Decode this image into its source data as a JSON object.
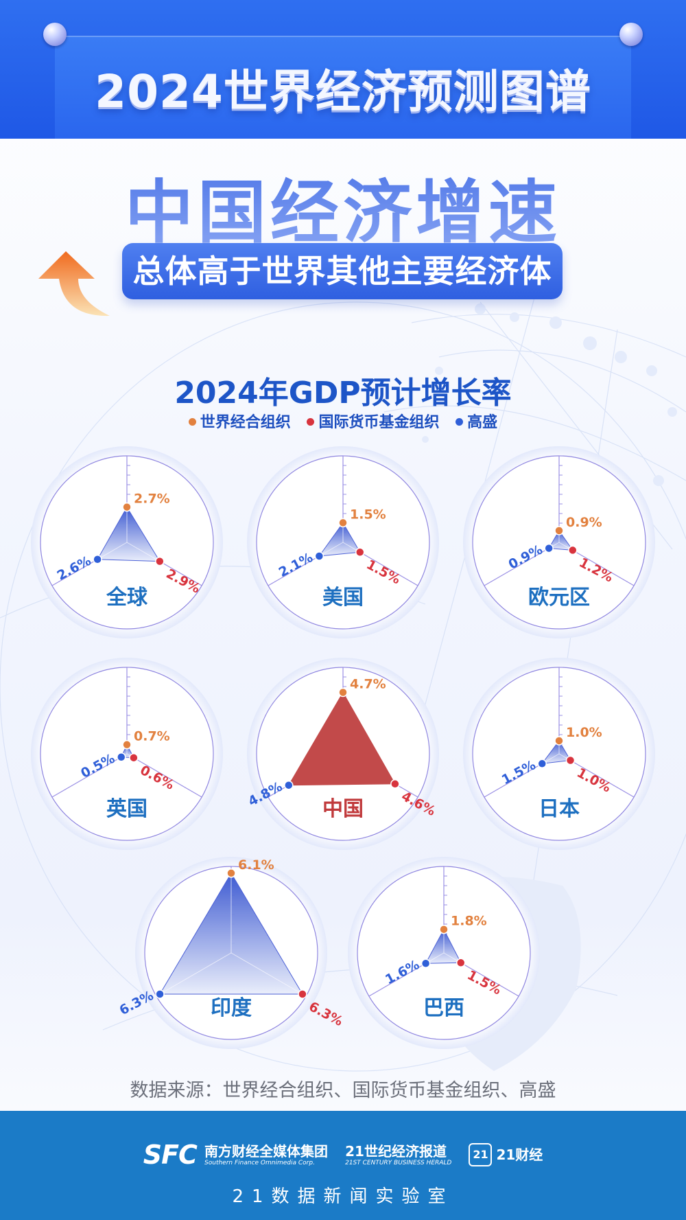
{
  "header": {
    "title": "2024世界经济预测图谱"
  },
  "hero": {
    "title": "中国经济增速",
    "subtitle": "总体高于世界其他主要经济体"
  },
  "colors": {
    "oecd": "#e2813f",
    "imf": "#d8343e",
    "gs": "#2f5fd8",
    "china_fill": "#c24a4a",
    "footer": "#1b7bc7"
  },
  "chart_data": {
    "type": "radar",
    "title": "2024年GDP预计增长率",
    "legend": [
      {
        "name": "世界经合组织",
        "color": "#e2813f"
      },
      {
        "name": "国际货币基金组织",
        "color": "#d8343e"
      },
      {
        "name": "高盛",
        "color": "#2f5fd8"
      }
    ],
    "axes": [
      "世界经合组织",
      "国际货币基金组织",
      "高盛"
    ],
    "unit": "%",
    "rmax": 6.3,
    "regions": [
      {
        "name": "全球",
        "values": [
          2.7,
          2.9,
          2.6
        ],
        "labels": [
          "2.7%",
          "2.9%",
          "2.6%"
        ]
      },
      {
        "name": "美国",
        "values": [
          1.5,
          1.5,
          2.1
        ],
        "labels": [
          "1.5%",
          "1.5%",
          "2.1%"
        ]
      },
      {
        "name": "欧元区",
        "values": [
          0.9,
          1.2,
          0.9
        ],
        "labels": [
          "0.9%",
          "1.2%",
          "0.9%"
        ]
      },
      {
        "name": "英国",
        "values": [
          0.7,
          0.6,
          0.5
        ],
        "labels": [
          "0.7%",
          "0.6%",
          "0.5%"
        ]
      },
      {
        "name": "中国",
        "values": [
          4.7,
          4.6,
          4.8
        ],
        "labels": [
          "4.7%",
          "4.6%",
          "4.8%"
        ],
        "highlight": true
      },
      {
        "name": "日本",
        "values": [
          1.0,
          1.0,
          1.5
        ],
        "labels": [
          "1.0%",
          "1.0%",
          "1.5%"
        ]
      },
      {
        "name": "印度",
        "values": [
          6.1,
          6.3,
          6.3
        ],
        "labels": [
          "6.1%",
          "6.3%",
          "6.3%"
        ]
      },
      {
        "name": "巴西",
        "values": [
          1.8,
          1.5,
          1.6
        ],
        "labels": [
          "1.8%",
          "1.5%",
          "1.6%"
        ]
      }
    ]
  },
  "source": "数据来源：世界经合组织、国际货币基金组织、高盛",
  "footer": {
    "logo1_mark": "SFC",
    "logo1_name": "南方财经全媒体集团",
    "logo1_en": "Southern Finance Omnimedia Corp.",
    "logo2_name": "21世纪经济报道",
    "logo2_en": "21ST CENTURY BUSINESS HERALD",
    "logo3_mark": "21",
    "logo3_name": "21财经",
    "lab": "21数据新闻实验室"
  }
}
